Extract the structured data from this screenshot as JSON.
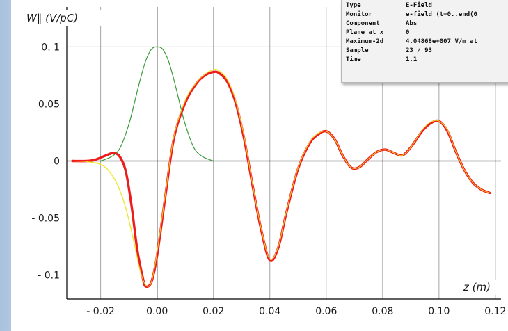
{
  "info_panel": {
    "rows": [
      {
        "label": "Type",
        "value": "E-Field"
      },
      {
        "label": "Monitor",
        "value": "e-field (t=0..end(0"
      },
      {
        "label": "Component",
        "value": "Abs"
      },
      {
        "label": "Plane at x",
        "value": "0"
      },
      {
        "label": "Maximum-2d",
        "value": "4.04868e+007 V/m at"
      },
      {
        "label": "Sample",
        "value": "23 / 93"
      },
      {
        "label": "Time",
        "value": "1.1"
      }
    ]
  },
  "chart_data": {
    "type": "line",
    "ylabel": "W∥ (V/pC)",
    "xlabel": "z (m)",
    "xlim": [
      -0.032,
      0.122
    ],
    "ylim": [
      -0.121,
      0.135
    ],
    "xticks": [
      -0.02,
      0.0,
      0.02,
      0.04,
      0.06,
      0.08,
      0.1,
      0.12
    ],
    "xtick_labels": [
      "- 0.02",
      "0.00",
      "0.02",
      "0.04",
      "0.06",
      "0.08",
      "0.10",
      "0.12"
    ],
    "yticks": [
      0.1,
      0.05,
      0,
      -0.05,
      -0.1
    ],
    "ytick_labels": [
      "0. 1",
      "0.05",
      "0",
      "- 0.05",
      "- 0.1"
    ],
    "grid": true,
    "colors": {
      "red": "#ee1c1c",
      "yellow": "#f0e633",
      "green": "#3a9a3a",
      "grid": "#a5a5a5",
      "axis": "#000000"
    },
    "series": [
      {
        "color": "#f0e633",
        "x": [
          -0.03,
          -0.025,
          -0.02,
          -0.017,
          -0.014,
          -0.011,
          -0.008,
          -0.006,
          -0.004,
          -0.002,
          0.0,
          0.003,
          0.006,
          0.01,
          0.014,
          0.017,
          0.02,
          0.022,
          0.025,
          0.028,
          0.031,
          0.034,
          0.037,
          0.04,
          0.043,
          0.046,
          0.05,
          0.054,
          0.057,
          0.06,
          0.063,
          0.066,
          0.069,
          0.072,
          0.075,
          0.078,
          0.081,
          0.084,
          0.087,
          0.09,
          0.094,
          0.097,
          0.1,
          0.103,
          0.106,
          0.109,
          0.112,
          0.115,
          0.118
        ],
        "y": [
          0.0,
          -0.0005,
          -0.003,
          -0.009,
          -0.021,
          -0.042,
          -0.073,
          -0.096,
          -0.109,
          -0.106,
          -0.08,
          -0.028,
          0.022,
          0.053,
          0.069,
          0.076,
          0.08,
          0.079,
          0.071,
          0.052,
          0.02,
          -0.022,
          -0.06,
          -0.086,
          -0.075,
          -0.043,
          -0.006,
          0.016,
          0.024,
          0.026,
          0.019,
          0.004,
          -0.006,
          -0.005,
          0.002,
          0.008,
          0.01,
          0.007,
          0.005,
          0.012,
          0.027,
          0.034,
          0.035,
          0.027,
          0.008,
          -0.008,
          -0.019,
          -0.025,
          -0.028
        ]
      },
      {
        "color": "#ee1c1c",
        "x": [
          -0.03,
          -0.025,
          -0.022,
          -0.019,
          -0.017,
          -0.015,
          -0.013,
          -0.011,
          -0.009,
          -0.007,
          -0.005,
          -0.004,
          -0.002,
          0.0,
          0.003,
          0.006,
          0.01,
          0.014,
          0.017,
          0.02,
          0.022,
          0.025,
          0.028,
          0.031,
          0.034,
          0.037,
          0.04,
          0.043,
          0.046,
          0.05,
          0.054,
          0.057,
          0.06,
          0.063,
          0.066,
          0.069,
          0.072,
          0.075,
          0.078,
          0.081,
          0.084,
          0.087,
          0.09,
          0.094,
          0.097,
          0.1,
          0.103,
          0.106,
          0.109,
          0.112,
          0.115,
          0.118
        ],
        "y": [
          0.0,
          0.0,
          0.001,
          0.004,
          0.006,
          0.007,
          0.003,
          -0.01,
          -0.04,
          -0.078,
          -0.103,
          -0.11,
          -0.106,
          -0.083,
          -0.03,
          0.02,
          0.051,
          0.068,
          0.075,
          0.078,
          0.077,
          0.069,
          0.05,
          0.018,
          -0.023,
          -0.061,
          -0.087,
          -0.076,
          -0.044,
          -0.007,
          0.015,
          0.023,
          0.026,
          0.019,
          0.004,
          -0.006,
          -0.005,
          0.002,
          0.008,
          0.01,
          0.007,
          0.005,
          0.012,
          0.026,
          0.033,
          0.035,
          0.026,
          0.008,
          -0.008,
          -0.019,
          -0.025,
          -0.028
        ]
      },
      {
        "color": "#3a9a3a",
        "x": [
          -0.02,
          -0.016,
          -0.013,
          -0.01,
          -0.008,
          -0.006,
          -0.004,
          -0.002,
          0.0,
          0.002,
          0.004,
          0.006,
          0.008,
          0.01,
          0.013,
          0.016,
          0.02
        ],
        "y": [
          0.0,
          0.004,
          0.012,
          0.032,
          0.051,
          0.071,
          0.088,
          0.098,
          0.1,
          0.098,
          0.088,
          0.071,
          0.051,
          0.032,
          0.012,
          0.004,
          0.0
        ]
      }
    ]
  }
}
